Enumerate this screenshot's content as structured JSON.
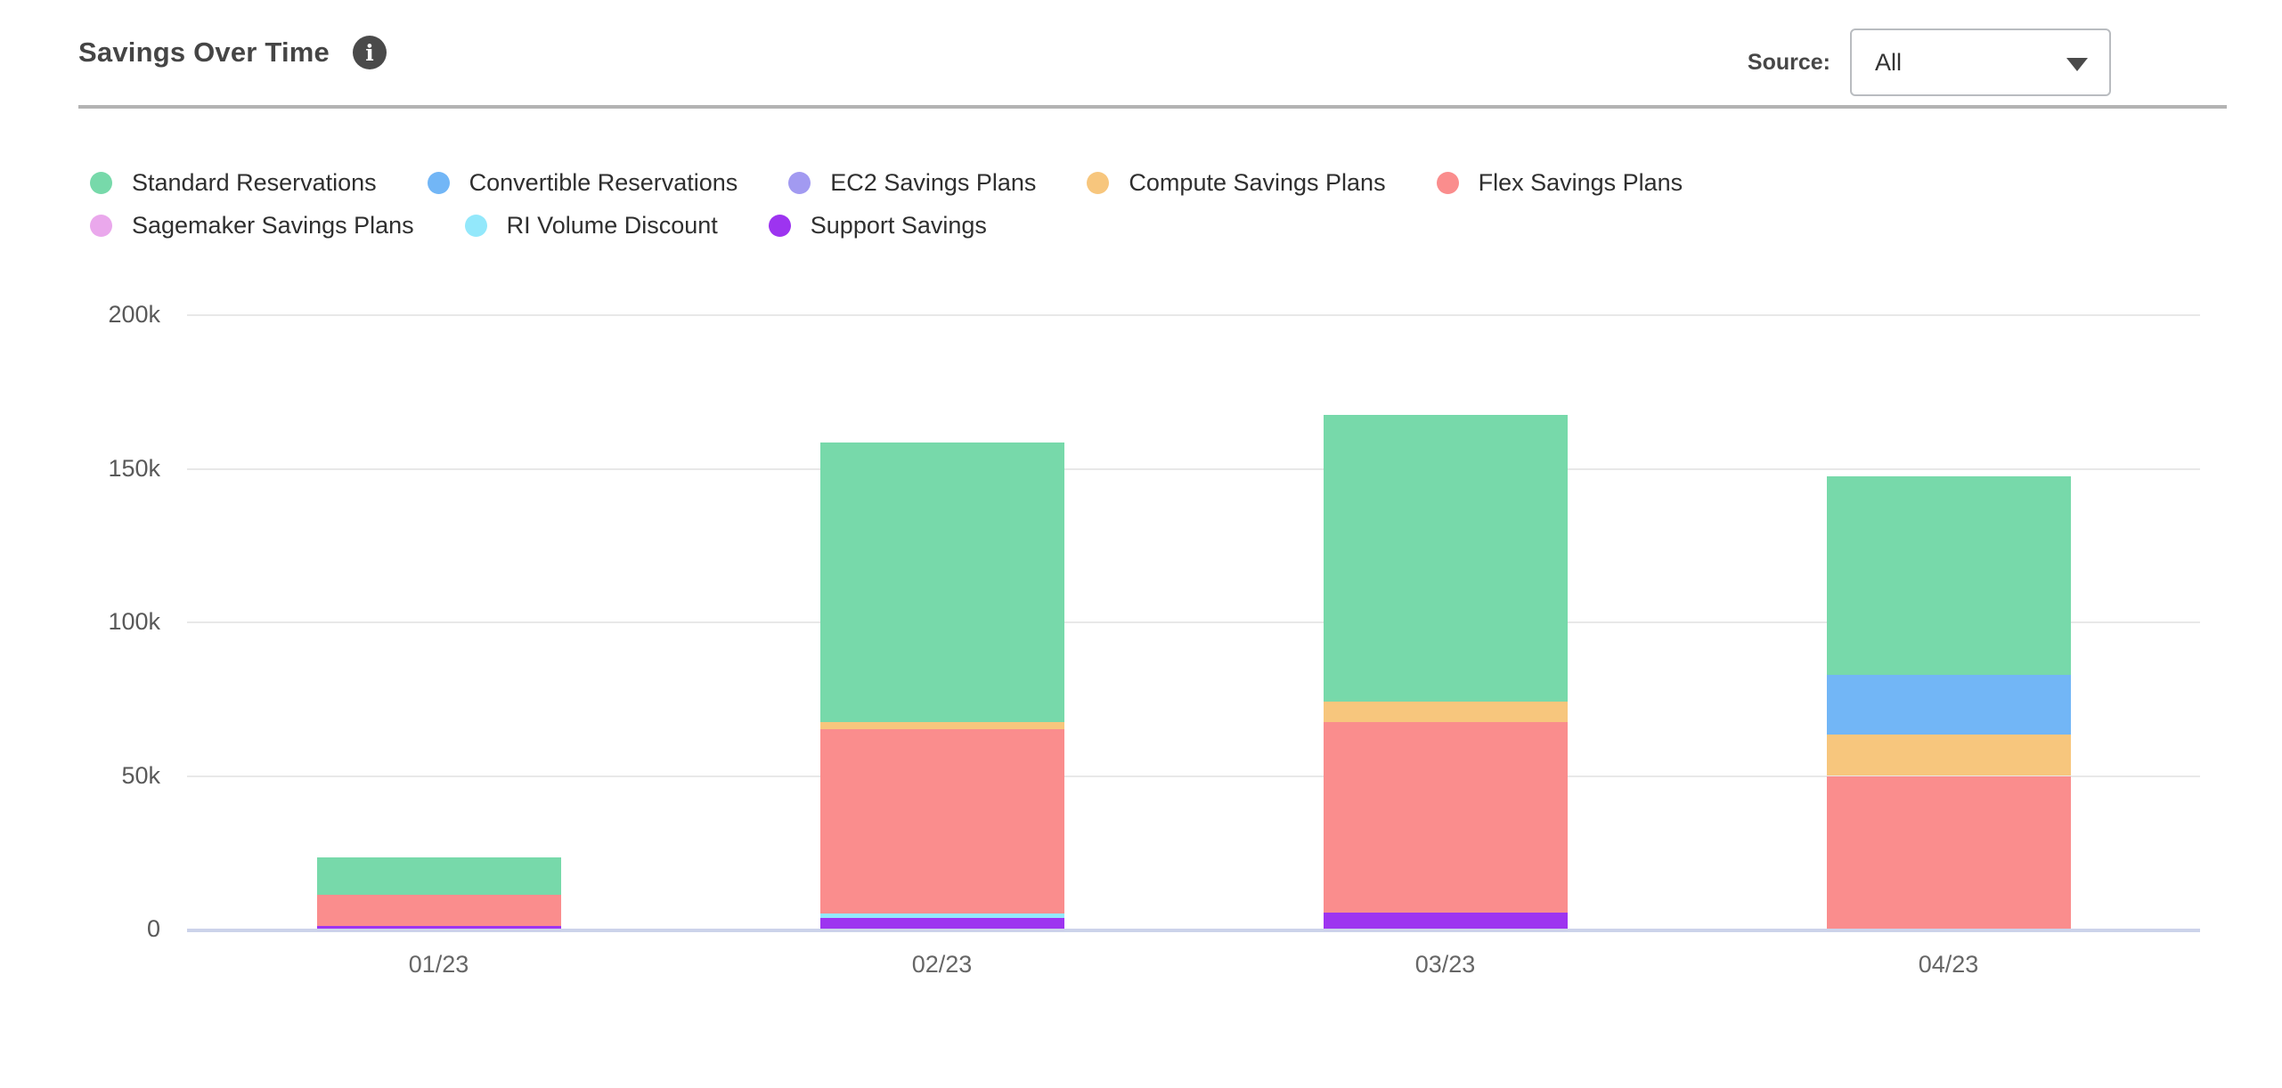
{
  "header": {
    "title": "Savings Over Time",
    "info_icon_glyph": "i",
    "source_label": "Source:",
    "source_value": "All"
  },
  "legend": {
    "rows": [
      [
        {
          "label": "Standard Reservations",
          "color": "#77d9aa"
        },
        {
          "label": "Convertible Reservations",
          "color": "#72b6f6"
        },
        {
          "label": "EC2 Savings Plans",
          "color": "#a29af1"
        },
        {
          "label": "Compute Savings Plans",
          "color": "#f7c67d"
        },
        {
          "label": "Flex Savings Plans",
          "color": "#fa8d8d"
        }
      ],
      [
        {
          "label": "Sagemaker Savings Plans",
          "color": "#eaa8ec"
        },
        {
          "label": "RI Volume Discount",
          "color": "#93e8fb"
        },
        {
          "label": "Support Savings",
          "color": "#9d34f0"
        }
      ]
    ]
  },
  "chart_data": {
    "type": "bar",
    "stacked": true,
    "title": "Savings Over Time",
    "xlabel": "",
    "ylabel": "",
    "ylim": [
      0,
      200000
    ],
    "grid": true,
    "legend_position": "top",
    "categories": [
      "01/23",
      "02/23",
      "03/23",
      "04/23"
    ],
    "y_ticks": [
      {
        "value": 0,
        "label": "0"
      },
      {
        "value": 50000,
        "label": "50k"
      },
      {
        "value": 100000,
        "label": "100k"
      },
      {
        "value": 150000,
        "label": "150k"
      },
      {
        "value": 200000,
        "label": "200k"
      }
    ],
    "series_bottom_to_top": [
      {
        "name": "Support Savings",
        "color": "#9d34f0",
        "values": [
          1200,
          3900,
          5500,
          0
        ]
      },
      {
        "name": "RI Volume Discount",
        "color": "#93e8fb",
        "values": [
          0,
          1400,
          0,
          0
        ]
      },
      {
        "name": "Flex Savings Plans",
        "color": "#fa8d8d",
        "values": [
          10000,
          60000,
          62000,
          50000
        ]
      },
      {
        "name": "Compute Savings Plans",
        "color": "#f7c67d",
        "values": [
          0,
          2300,
          6600,
          13600
        ]
      },
      {
        "name": "Convertible Reservations",
        "color": "#72b6f6",
        "values": [
          0,
          0,
          0,
          19400
        ]
      },
      {
        "name": "EC2 Savings Plans",
        "color": "#a29af1",
        "values": [
          0,
          0,
          0,
          0
        ]
      },
      {
        "name": "Sagemaker Savings Plans",
        "color": "#eaa8ec",
        "values": [
          0,
          0,
          0,
          0
        ]
      },
      {
        "name": "Standard Reservations",
        "color": "#77d9aa",
        "values": [
          12400,
          91000,
          93500,
          64500
        ]
      }
    ],
    "totals": [
      23600,
      158600,
      167600,
      147500
    ]
  },
  "colors": {
    "baseline_axis": "#ccd3ea",
    "gridline": "#e8e8e8",
    "divider": "#b3b3b3",
    "info_icon_bg": "#4a4a4a"
  }
}
